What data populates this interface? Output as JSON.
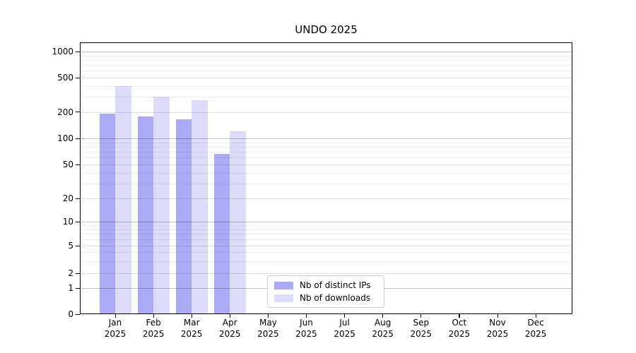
{
  "chart_data": {
    "type": "bar",
    "title": "UNDO 2025",
    "year": "2025",
    "categories": [
      "Jan",
      "Feb",
      "Mar",
      "Apr",
      "May",
      "Jun",
      "Jul",
      "Aug",
      "Sep",
      "Oct",
      "Nov",
      "Dec"
    ],
    "series": [
      {
        "name": "Nb of distinct IPs",
        "color": "#aaaaf5",
        "values": [
          190,
          178,
          164,
          66,
          null,
          null,
          null,
          null,
          null,
          null,
          null,
          null
        ]
      },
      {
        "name": "Nb of downloads",
        "color": "#dcdcfa",
        "values": [
          400,
          300,
          275,
          120,
          null,
          null,
          null,
          null,
          null,
          null,
          null,
          null
        ]
      }
    ],
    "yscale": "symlog",
    "yticks": [
      0,
      1,
      2,
      5,
      10,
      20,
      50,
      100,
      200,
      500,
      1000
    ],
    "ylim": [
      0,
      1200
    ],
    "grid": true,
    "legend_position": "inside-bottom-left-of-center"
  }
}
